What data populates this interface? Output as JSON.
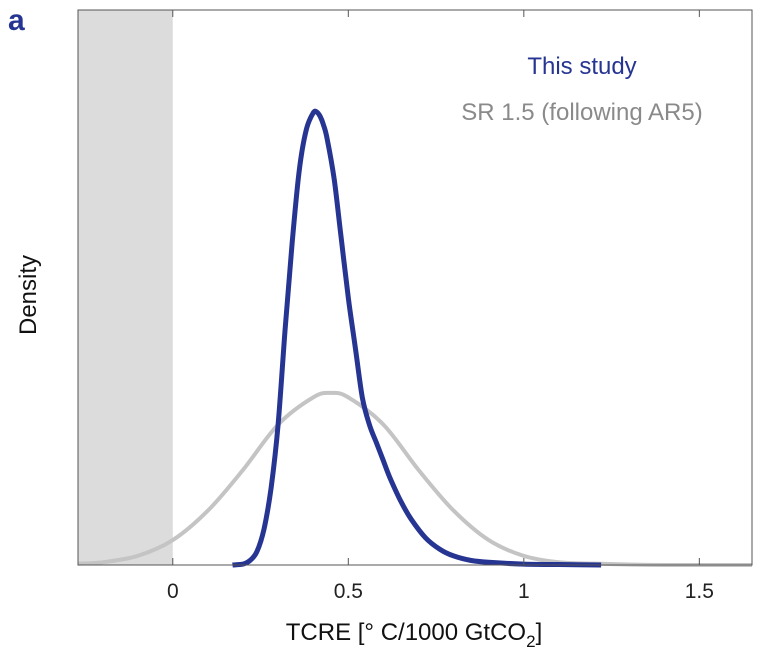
{
  "panel_label": "a",
  "colors": {
    "study": "#273592",
    "sr15": "#c4c4c4",
    "sr15_text": "#8a8a8a",
    "shade": "#dcdcdc",
    "panel_label": "#273592"
  },
  "chart_data": {
    "type": "line",
    "title": "",
    "xlabel_main": "TCRE [° C/1000 GtCO",
    "xlabel_sub": "2",
    "xlabel_close": "]",
    "ylabel": "Density",
    "xlim": [
      -0.27,
      1.65
    ],
    "ylim": [
      0,
      1.0
    ],
    "x_ticks": [
      0,
      0.5,
      1,
      1.5
    ],
    "x_tick_labels": [
      "0",
      "0.5",
      "1",
      "1.5"
    ],
    "y_ticks_shown": false,
    "grid": false,
    "shaded_region": {
      "x_from": -0.27,
      "x_to": 0.0
    },
    "legend_position": "top-right",
    "series": [
      {
        "name": "This study",
        "color": "#273592",
        "x": [
          0.17,
          0.2,
          0.22,
          0.24,
          0.26,
          0.28,
          0.3,
          0.32,
          0.34,
          0.36,
          0.38,
          0.4,
          0.41,
          0.42,
          0.43,
          0.44,
          0.46,
          0.48,
          0.5,
          0.52,
          0.54,
          0.56,
          0.58,
          0.6,
          0.62,
          0.65,
          0.68,
          0.72,
          0.76,
          0.8,
          0.85,
          0.9,
          1.0,
          1.1,
          1.22
        ],
        "y": [
          0.0,
          0.002,
          0.01,
          0.03,
          0.08,
          0.17,
          0.31,
          0.52,
          0.71,
          0.87,
          0.96,
          0.998,
          1.0,
          0.99,
          0.97,
          0.94,
          0.85,
          0.72,
          0.59,
          0.48,
          0.37,
          0.31,
          0.27,
          0.23,
          0.19,
          0.14,
          0.1,
          0.06,
          0.035,
          0.02,
          0.01,
          0.006,
          0.002,
          0.001,
          0.0
        ]
      },
      {
        "name": "SR 1.5 (following AR5)",
        "color": "#c4c4c4",
        "x": [
          -0.27,
          -0.2,
          -0.1,
          0.0,
          0.1,
          0.2,
          0.3,
          0.4,
          0.45,
          0.5,
          0.6,
          0.7,
          0.8,
          0.9,
          1.0,
          1.1,
          1.2,
          1.3,
          1.4,
          1.5,
          1.65
        ],
        "y": [
          0.003,
          0.006,
          0.02,
          0.055,
          0.12,
          0.21,
          0.31,
          0.37,
          0.38,
          0.37,
          0.31,
          0.21,
          0.12,
          0.055,
          0.02,
          0.006,
          0.003,
          0.001,
          0.0,
          0.0,
          0.0
        ]
      }
    ]
  }
}
